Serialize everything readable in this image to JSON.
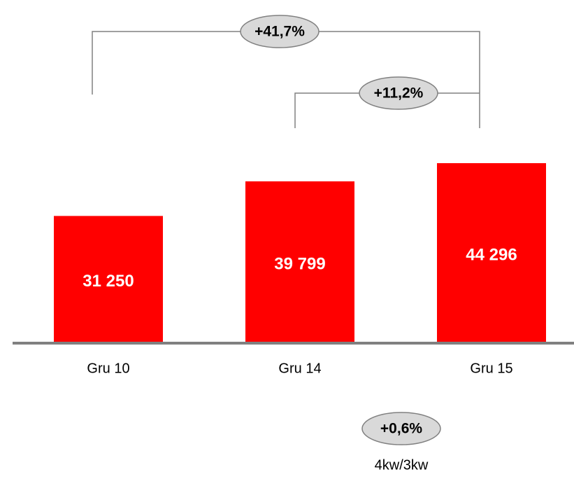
{
  "chart_data": {
    "type": "bar",
    "categories": [
      "Gru 10",
      "Gru 14",
      "Gru 15"
    ],
    "values": [
      31250,
      39799,
      44296
    ],
    "value_labels": [
      "31 250",
      "39 799",
      "44 296"
    ],
    "color": "#ff0000",
    "ylim": [
      0,
      50000
    ],
    "annotations": [
      "+41,7%",
      "+11,2%",
      "+0,6%"
    ],
    "footnote": "4kw/3kw"
  }
}
